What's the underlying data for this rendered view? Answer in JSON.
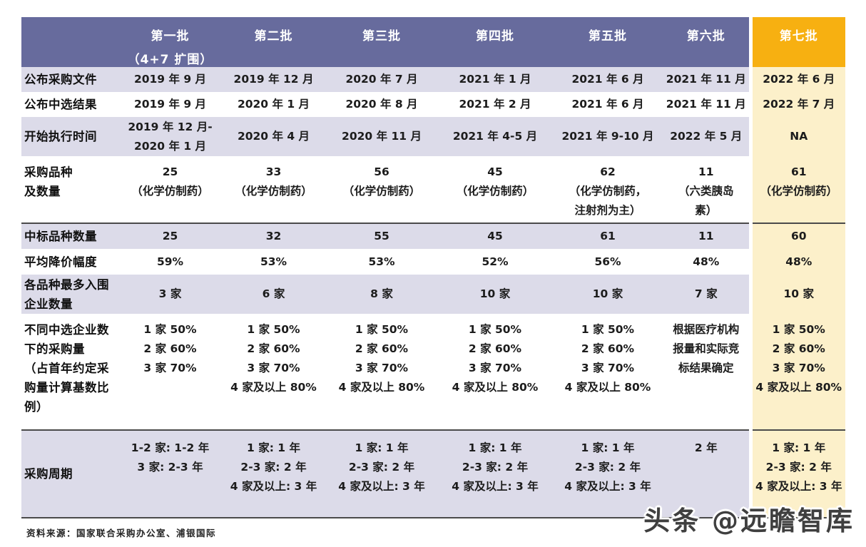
{
  "table": {
    "columns": [
      {
        "id": "rowlabel",
        "title": ""
      },
      {
        "id": "batch-1",
        "title": "第一批",
        "subtitle": "（4+7 扩围）"
      },
      {
        "id": "batch-2",
        "title": "第二批"
      },
      {
        "id": "batch-3",
        "title": "第三批"
      },
      {
        "id": "batch-4",
        "title": "第四批"
      },
      {
        "id": "batch-5",
        "title": "第五批"
      },
      {
        "id": "batch-6",
        "title": "第六批"
      },
      {
        "id": "batch-7",
        "title": "第七批",
        "highlighted": true
      }
    ],
    "rows": [
      {
        "label_lines": [
          "公布采购文件"
        ],
        "shade": "lav",
        "rule_top": false,
        "valign": "middle",
        "cells": [
          [
            "2019 年 9 月"
          ],
          [
            "2019 年 12 月"
          ],
          [
            "2020 年 7 月"
          ],
          [
            "2021 年 1 月"
          ],
          [
            "2021 年 6 月"
          ],
          [
            "2021 年 11 月"
          ],
          [
            "2022 年 6 月"
          ]
        ]
      },
      {
        "label_lines": [
          "公布中选结果"
        ],
        "shade": "white",
        "rule_top": false,
        "valign": "middle",
        "cells": [
          [
            "2019 年 9 月"
          ],
          [
            "2020 年 1 月"
          ],
          [
            "2020 年 8 月"
          ],
          [
            "2021 年 2 月"
          ],
          [
            "2021 年 6 月"
          ],
          [
            "2021 年 11 月"
          ],
          [
            "2022 年 7 月"
          ]
        ]
      },
      {
        "label_lines": [
          "开始执行时间"
        ],
        "shade": "lav",
        "rule_top": false,
        "valign": "middle",
        "cells": [
          [
            "2019 年 12 月-",
            "2020 年 1 月"
          ],
          [
            "2020 年 4 月"
          ],
          [
            "2020 年 11 月"
          ],
          [
            "2021 年 4-5 月"
          ],
          [
            "2021 年 9-10 月"
          ],
          [
            "2022 年 5 月"
          ],
          [
            "NA"
          ]
        ]
      },
      {
        "label_lines": [
          "采购品种",
          "及数量"
        ],
        "shade": "white",
        "rule_top": false,
        "valign": "top",
        "cells": [
          [
            "25",
            "（化学仿制药）"
          ],
          [
            "33",
            "（化学仿制药）"
          ],
          [
            "56",
            "（化学仿制药）"
          ],
          [
            "45",
            "（化学仿制药）"
          ],
          [
            "62",
            "（化学仿制药，",
            "注射剂为主）"
          ],
          [
            "11",
            "（六类胰岛",
            "素）"
          ],
          [
            "61",
            "（化学仿制药）"
          ]
        ]
      },
      {
        "label_lines": [
          "中标品种数量"
        ],
        "shade": "lav",
        "rule_top": true,
        "valign": "middle",
        "cells": [
          [
            "25"
          ],
          [
            "32"
          ],
          [
            "55"
          ],
          [
            "45"
          ],
          [
            "61"
          ],
          [
            "11"
          ],
          [
            "60"
          ]
        ]
      },
      {
        "label_lines": [
          "平均降价幅度"
        ],
        "shade": "white",
        "rule_top": false,
        "valign": "middle",
        "cells": [
          [
            "59%"
          ],
          [
            "53%"
          ],
          [
            "53%"
          ],
          [
            "52%"
          ],
          [
            "56%"
          ],
          [
            "48%"
          ],
          [
            "48%"
          ]
        ]
      },
      {
        "label_lines": [
          "各品种最多入围",
          "企业数量"
        ],
        "shade": "lav",
        "rule_top": false,
        "valign": "middle",
        "cells": [
          [
            "3 家"
          ],
          [
            "6 家"
          ],
          [
            "8 家"
          ],
          [
            "10 家"
          ],
          [
            "10 家"
          ],
          [
            "7 家"
          ],
          [
            "10 家"
          ]
        ]
      },
      {
        "label_lines": [
          "不同中选企业数",
          "下的采购量",
          "（占首年约定采",
          "购量计算基数比",
          "例）"
        ],
        "shade": "white",
        "rule_top": false,
        "valign": "top",
        "cells": [
          [
            "1 家 50%",
            "2 家 60%",
            "3 家 70%"
          ],
          [
            "1 家 50%",
            "2 家 60%",
            "3 家 70%",
            "4 家及以上 80%"
          ],
          [
            "1 家 50%",
            "2 家 60%",
            "3 家 70%",
            "4 家及以上 80%"
          ],
          [
            "1 家 50%",
            "2 家 60%",
            "3 家 70%",
            "4 家及以上 80%"
          ],
          [
            "1 家 50%",
            "2 家 60%",
            "3 家 70%",
            "4 家及以上 80%"
          ],
          [
            "根据医疗机构",
            "报量和实际竞",
            "标结果确定"
          ],
          [
            "1 家 50%",
            "2 家 60%",
            "3 家 70%",
            "4 家及以上 80%"
          ]
        ]
      },
      {
        "label_lines": [
          "采购周期"
        ],
        "shade": "lav",
        "rule_top": true,
        "valign": "data-top",
        "cells": [
          [
            "1-2 家: 1-2 年",
            "3 家: 2-3 年"
          ],
          [
            "1 家: 1 年",
            "2-3 家: 2 年",
            "4 家及以上: 3 年"
          ],
          [
            "1 家: 1 年",
            "2-3 家: 2 年",
            "4 家及以上: 3 年"
          ],
          [
            "1 家: 1 年",
            "2-3 家: 2 年",
            "4 家及以上: 3 年"
          ],
          [
            "1 家: 1 年",
            "2-3 家: 2 年",
            "4 家及以上: 3 年"
          ],
          [
            "2 年"
          ],
          [
            "1 家: 1 年",
            "2-3 家: 2 年",
            "4 家及以上: 3 年"
          ]
        ]
      }
    ]
  },
  "colors": {
    "header_purple": "#676b9d",
    "row_lavender": "#dcdbe9",
    "batch7_header_yellow": "#f7b011",
    "batch7_body_yellow": "#fcf0ca"
  },
  "source_note": "资料来源：国家联合采购办公室、浦银国际",
  "watermark": "头条 @远瞻智库"
}
